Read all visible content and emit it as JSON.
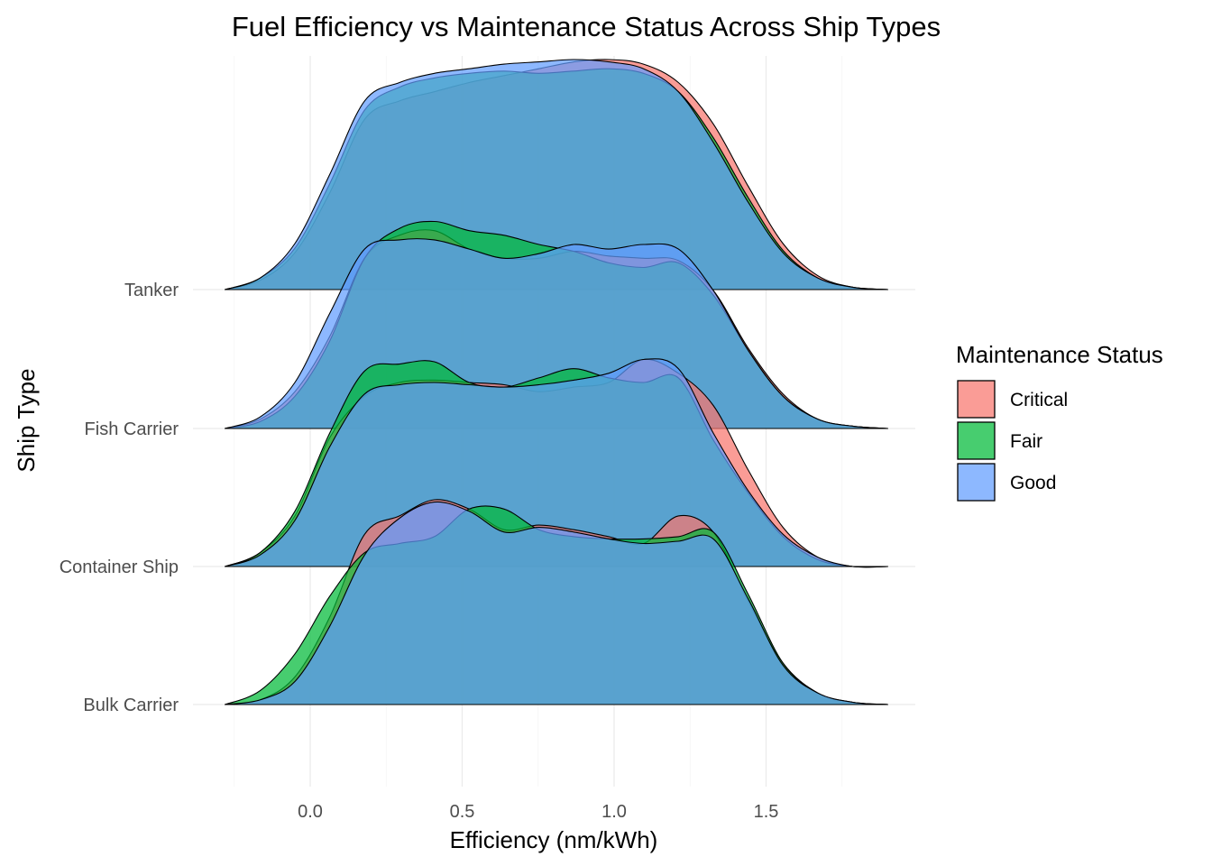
{
  "chart_data": {
    "type": "ridgeline density",
    "title": "Fuel Efficiency vs Maintenance Status Across Ship Types",
    "xlabel": "Efficiency (nm/kWh)",
    "ylabel": "Ship Type",
    "xlim": [
      -0.28,
      1.9
    ],
    "x_ticks": [
      0.0,
      0.5,
      1.0,
      1.5
    ],
    "x_tick_labels": [
      "0.0",
      "0.5",
      "1.0",
      "1.5"
    ],
    "categories": [
      "Bulk Carrier",
      "Container Ship",
      "Fish Carrier",
      "Tanker"
    ],
    "legend": {
      "title": "Maintenance Status",
      "position": "right",
      "entries": [
        {
          "name": "Critical",
          "color": "#F8766D"
        },
        {
          "name": "Fair",
          "color": "#00BA38"
        },
        {
          "name": "Good",
          "color": "#619CFF"
        }
      ]
    },
    "grid": true,
    "x_grid": [
      -0.28,
      -0.25,
      0,
      0.25,
      0.5,
      0.75,
      1.0,
      1.25,
      1.5,
      1.75,
      1.9
    ],
    "ridges": [
      {
        "category": "Bulk Carrier",
        "series": [
          {
            "name": "Critical",
            "density": [
              0.0,
              0.02,
              0.12,
              0.38,
              0.74,
              0.82,
              0.89,
              0.85,
              0.76,
              0.78,
              0.76,
              0.73,
              0.7,
              0.82,
              0.75,
              0.45,
              0.18,
              0.05,
              0.01,
              0.0
            ]
          },
          {
            "name": "Fair",
            "density": [
              0.0,
              0.06,
              0.22,
              0.47,
              0.66,
              0.7,
              0.73,
              0.85,
              0.85,
              0.76,
              0.73,
              0.72,
              0.72,
              0.73,
              0.75,
              0.48,
              0.18,
              0.05,
              0.01,
              0.0
            ]
          },
          {
            "name": "Good",
            "density": [
              0.0,
              0.02,
              0.1,
              0.34,
              0.65,
              0.81,
              0.88,
              0.84,
              0.75,
              0.77,
              0.75,
              0.72,
              0.7,
              0.71,
              0.72,
              0.46,
              0.17,
              0.05,
              0.01,
              0.0
            ]
          }
        ]
      },
      {
        "category": "Container Ship",
        "series": [
          {
            "name": "Critical",
            "density": [
              0.0,
              0.06,
              0.22,
              0.56,
              0.74,
              0.8,
              0.81,
              0.8,
              0.79,
              0.76,
              0.78,
              0.8,
              0.9,
              0.84,
              0.7,
              0.42,
              0.17,
              0.04,
              0.0,
              0.0
            ]
          },
          {
            "name": "Fair",
            "density": [
              0.0,
              0.06,
              0.24,
              0.58,
              0.85,
              0.88,
              0.89,
              0.8,
              0.78,
              0.82,
              0.86,
              0.82,
              0.8,
              0.82,
              0.55,
              0.32,
              0.13,
              0.03,
              0.0,
              0.0
            ]
          },
          {
            "name": "Good",
            "density": [
              0.0,
              0.05,
              0.2,
              0.52,
              0.75,
              0.79,
              0.8,
              0.79,
              0.78,
              0.79,
              0.81,
              0.84,
              0.9,
              0.86,
              0.58,
              0.33,
              0.14,
              0.04,
              0.0,
              0.0
            ]
          }
        ]
      },
      {
        "category": "Fish Carrier",
        "series": [
          {
            "name": "Critical",
            "density": [
              0.0,
              0.04,
              0.16,
              0.4,
              0.74,
              0.84,
              0.86,
              0.78,
              0.74,
              0.74,
              0.77,
              0.75,
              0.74,
              0.73,
              0.6,
              0.35,
              0.15,
              0.04,
              0.01,
              0.0
            ]
          },
          {
            "name": "Fair",
            "density": [
              0.0,
              0.03,
              0.14,
              0.38,
              0.74,
              0.87,
              0.9,
              0.86,
              0.84,
              0.8,
              0.77,
              0.72,
              0.7,
              0.72,
              0.58,
              0.34,
              0.14,
              0.04,
              0.01,
              0.0
            ]
          },
          {
            "name": "Good",
            "density": [
              0.0,
              0.05,
              0.2,
              0.5,
              0.78,
              0.82,
              0.82,
              0.78,
              0.74,
              0.76,
              0.8,
              0.78,
              0.8,
              0.78,
              0.6,
              0.34,
              0.14,
              0.04,
              0.01,
              0.0
            ]
          }
        ]
      },
      {
        "category": "Tanker",
        "series": [
          {
            "name": "Critical",
            "density": [
              0.0,
              0.04,
              0.16,
              0.42,
              0.74,
              0.82,
              0.86,
              0.9,
              0.93,
              0.96,
              0.99,
              1.0,
              0.98,
              0.9,
              0.72,
              0.45,
              0.2,
              0.06,
              0.01,
              0.0
            ]
          },
          {
            "name": "Fair",
            "density": [
              0.0,
              0.05,
              0.18,
              0.46,
              0.78,
              0.88,
              0.92,
              0.94,
              0.95,
              0.94,
              0.95,
              0.96,
              0.94,
              0.86,
              0.66,
              0.4,
              0.17,
              0.05,
              0.01,
              0.0
            ]
          },
          {
            "name": "Good",
            "density": [
              0.0,
              0.05,
              0.2,
              0.5,
              0.82,
              0.9,
              0.94,
              0.96,
              0.98,
              0.99,
              1.0,
              0.99,
              0.96,
              0.86,
              0.64,
              0.38,
              0.16,
              0.05,
              0.01,
              0.0
            ]
          }
        ]
      }
    ]
  }
}
